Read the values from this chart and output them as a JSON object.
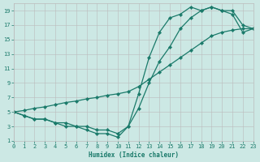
{
  "xlabel": "Humidex (Indice chaleur)",
  "bg_color": "#cce8e4",
  "grid_color": "#bbbbbb",
  "line_color": "#1a7a6a",
  "xlim": [
    0,
    23
  ],
  "ylim": [
    1,
    20
  ],
  "xticks": [
    0,
    1,
    2,
    3,
    4,
    5,
    6,
    7,
    8,
    9,
    10,
    11,
    12,
    13,
    14,
    15,
    16,
    17,
    18,
    19,
    20,
    21,
    22,
    23
  ],
  "yticks": [
    1,
    3,
    5,
    7,
    9,
    11,
    13,
    15,
    17,
    19
  ],
  "line1_x": [
    0,
    1,
    2,
    3,
    4,
    5,
    6,
    7,
    8,
    9,
    10,
    11,
    12,
    13,
    14,
    15,
    16,
    17,
    18,
    19,
    20,
    21,
    22,
    23
  ],
  "line1_y": [
    5,
    4.5,
    4.0,
    4.0,
    3.5,
    3.0,
    3.0,
    2.5,
    2.0,
    2.0,
    1.5,
    3.0,
    7.5,
    12.5,
    16.0,
    18.0,
    18.5,
    19.5,
    19.0,
    19.5,
    19.0,
    18.5,
    16.0,
    16.5
  ],
  "line2_x": [
    0,
    1,
    2,
    3,
    4,
    5,
    6,
    7,
    8,
    9,
    10,
    11,
    12,
    13,
    14,
    15,
    16,
    17,
    18,
    19,
    20,
    21,
    22,
    23
  ],
  "line2_y": [
    5,
    4.5,
    4.0,
    4.0,
    3.5,
    3.5,
    3.0,
    3.0,
    2.5,
    2.5,
    2.0,
    3.0,
    5.5,
    9.0,
    12.0,
    14.0,
    16.5,
    18.0,
    19.0,
    19.5,
    19.0,
    19.0,
    17.0,
    16.5
  ],
  "line3_x": [
    0,
    1,
    2,
    3,
    4,
    5,
    6,
    7,
    8,
    9,
    10,
    11,
    12,
    13,
    14,
    15,
    16,
    17,
    18,
    19,
    20,
    21,
    22,
    23
  ],
  "line3_y": [
    5,
    5.2,
    5.5,
    5.7,
    6.0,
    6.3,
    6.5,
    6.8,
    7.0,
    7.3,
    7.5,
    7.8,
    8.5,
    9.5,
    10.5,
    11.5,
    12.5,
    13.5,
    14.5,
    15.5,
    16.0,
    16.3,
    16.5,
    16.5
  ]
}
